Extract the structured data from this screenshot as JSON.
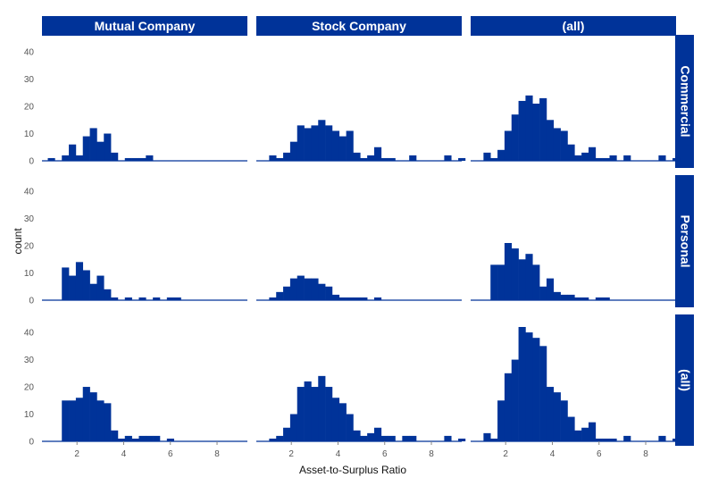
{
  "chart_data": {
    "type": "bar",
    "subtype": "faceted-histogram",
    "xlabel": "Asset-to-Surplus Ratio",
    "ylabel": "count",
    "x_ticks": [
      2,
      4,
      6,
      8
    ],
    "y_ticks": [
      0,
      10,
      20,
      30,
      40
    ],
    "xlim": [
      0.5,
      9.3
    ],
    "ylim": [
      0,
      42
    ],
    "bin_width": 0.3,
    "grid": false,
    "legend": "none",
    "colors": {
      "bar": "#003399",
      "strip": "#003399",
      "strip_text": "#ffffff"
    },
    "col_facets": [
      "Mutual Company",
      "Stock Company",
      "(all)"
    ],
    "row_facets": [
      "Commercial",
      "Personal",
      "(all)"
    ],
    "panels": [
      {
        "row": "Commercial",
        "col": "Mutual Company",
        "bins": [
          [
            0.9,
            1
          ],
          [
            1.5,
            2
          ],
          [
            1.8,
            6
          ],
          [
            2.1,
            2
          ],
          [
            2.4,
            9
          ],
          [
            2.7,
            12
          ],
          [
            3.0,
            7
          ],
          [
            3.3,
            10
          ],
          [
            3.6,
            3
          ],
          [
            4.2,
            1
          ],
          [
            4.5,
            1
          ],
          [
            4.8,
            1
          ],
          [
            5.1,
            2
          ]
        ]
      },
      {
        "row": "Commercial",
        "col": "Stock Company",
        "bins": [
          [
            1.2,
            2
          ],
          [
            1.5,
            1
          ],
          [
            1.8,
            3
          ],
          [
            2.1,
            7
          ],
          [
            2.4,
            13
          ],
          [
            2.7,
            12
          ],
          [
            3.0,
            13
          ],
          [
            3.3,
            15
          ],
          [
            3.6,
            13
          ],
          [
            3.9,
            11
          ],
          [
            4.2,
            9
          ],
          [
            4.5,
            11
          ],
          [
            4.8,
            3
          ],
          [
            5.1,
            1
          ],
          [
            5.4,
            2
          ],
          [
            5.7,
            5
          ],
          [
            6.0,
            1
          ],
          [
            6.3,
            1
          ],
          [
            7.2,
            2
          ],
          [
            8.7,
            2
          ],
          [
            9.3,
            1
          ]
        ]
      },
      {
        "row": "Commercial",
        "col": "(all)",
        "bins": [
          [
            1.2,
            3
          ],
          [
            1.5,
            1
          ],
          [
            1.8,
            4
          ],
          [
            2.1,
            11
          ],
          [
            2.4,
            17
          ],
          [
            2.7,
            22
          ],
          [
            3.0,
            24
          ],
          [
            3.3,
            21
          ],
          [
            3.6,
            23
          ],
          [
            3.9,
            15
          ],
          [
            4.2,
            12
          ],
          [
            4.5,
            11
          ],
          [
            4.8,
            6
          ],
          [
            5.1,
            2
          ],
          [
            5.4,
            3
          ],
          [
            5.7,
            5
          ],
          [
            6.0,
            1
          ],
          [
            6.3,
            1
          ],
          [
            6.6,
            2
          ],
          [
            7.2,
            2
          ],
          [
            8.7,
            2
          ],
          [
            9.3,
            1
          ]
        ]
      },
      {
        "row": "Personal",
        "col": "Mutual Company",
        "bins": [
          [
            1.5,
            12
          ],
          [
            1.8,
            9
          ],
          [
            2.1,
            14
          ],
          [
            2.4,
            11
          ],
          [
            2.7,
            6
          ],
          [
            3.0,
            9
          ],
          [
            3.3,
            4
          ],
          [
            3.6,
            1
          ],
          [
            4.2,
            1
          ],
          [
            4.8,
            1
          ],
          [
            5.4,
            1
          ],
          [
            6.0,
            1
          ],
          [
            6.3,
            1
          ]
        ]
      },
      {
        "row": "Personal",
        "col": "Stock Company",
        "bins": [
          [
            1.2,
            1
          ],
          [
            1.5,
            3
          ],
          [
            1.8,
            5
          ],
          [
            2.1,
            8
          ],
          [
            2.4,
            9
          ],
          [
            2.7,
            8
          ],
          [
            3.0,
            8
          ],
          [
            3.3,
            6
          ],
          [
            3.6,
            5
          ],
          [
            3.9,
            2
          ],
          [
            4.2,
            1
          ],
          [
            4.5,
            1
          ],
          [
            4.8,
            1
          ],
          [
            5.1,
            1
          ],
          [
            5.7,
            1
          ]
        ]
      },
      {
        "row": "Personal",
        "col": "(all)",
        "bins": [
          [
            1.5,
            13
          ],
          [
            1.8,
            13
          ],
          [
            2.1,
            21
          ],
          [
            2.4,
            19
          ],
          [
            2.7,
            15
          ],
          [
            3.0,
            17
          ],
          [
            3.3,
            13
          ],
          [
            3.6,
            5
          ],
          [
            3.9,
            8
          ],
          [
            4.2,
            3
          ],
          [
            4.5,
            2
          ],
          [
            4.8,
            2
          ],
          [
            5.1,
            1
          ],
          [
            5.4,
            1
          ],
          [
            6.0,
            1
          ],
          [
            6.3,
            1
          ]
        ]
      },
      {
        "row": "(all)",
        "col": "Mutual Company",
        "bins": [
          [
            1.5,
            15
          ],
          [
            1.8,
            15
          ],
          [
            2.1,
            16
          ],
          [
            2.4,
            20
          ],
          [
            2.7,
            18
          ],
          [
            3.0,
            15
          ],
          [
            3.3,
            14
          ],
          [
            3.6,
            4
          ],
          [
            3.9,
            1
          ],
          [
            4.2,
            2
          ],
          [
            4.5,
            1
          ],
          [
            4.8,
            2
          ],
          [
            5.1,
            2
          ],
          [
            5.4,
            2
          ],
          [
            6.0,
            1
          ]
        ]
      },
      {
        "row": "(all)",
        "col": "Stock Company",
        "bins": [
          [
            1.2,
            1
          ],
          [
            1.5,
            2
          ],
          [
            1.8,
            5
          ],
          [
            2.1,
            10
          ],
          [
            2.4,
            20
          ],
          [
            2.7,
            22
          ],
          [
            3.0,
            20
          ],
          [
            3.3,
            24
          ],
          [
            3.6,
            20
          ],
          [
            3.9,
            16
          ],
          [
            4.2,
            14
          ],
          [
            4.5,
            10
          ],
          [
            4.8,
            4
          ],
          [
            5.1,
            2
          ],
          [
            5.4,
            3
          ],
          [
            5.7,
            5
          ],
          [
            6.0,
            2
          ],
          [
            6.3,
            2
          ],
          [
            6.9,
            2
          ],
          [
            7.2,
            2
          ],
          [
            8.7,
            2
          ],
          [
            9.3,
            1
          ]
        ]
      },
      {
        "row": "(all)",
        "col": "(all)",
        "bins": [
          [
            1.2,
            3
          ],
          [
            1.5,
            1
          ],
          [
            1.8,
            15
          ],
          [
            2.1,
            25
          ],
          [
            2.4,
            30
          ],
          [
            2.7,
            42
          ],
          [
            3.0,
            40
          ],
          [
            3.3,
            38
          ],
          [
            3.6,
            35
          ],
          [
            3.9,
            20
          ],
          [
            4.2,
            18
          ],
          [
            4.5,
            15
          ],
          [
            4.8,
            9
          ],
          [
            5.1,
            4
          ],
          [
            5.4,
            5
          ],
          [
            5.7,
            7
          ],
          [
            6.0,
            1
          ],
          [
            6.3,
            1
          ],
          [
            6.6,
            1
          ],
          [
            7.2,
            2
          ],
          [
            8.7,
            2
          ],
          [
            9.3,
            1
          ]
        ]
      }
    ]
  }
}
